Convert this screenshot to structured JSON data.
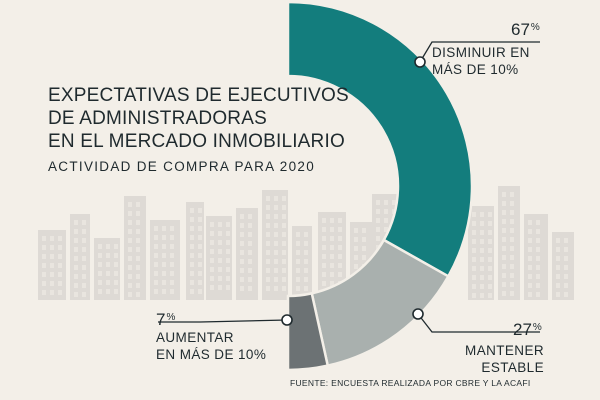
{
  "title_lines": [
    "EXPECTATIVAS DE EJECUTIVOS",
    "DE ADMINISTRADORAS",
    "EN EL MERCADO INMOBILIARIO"
  ],
  "subtitle": "ACTIVIDAD DE COMPRA PARA 2020",
  "source": "FUENTE: ENCUESTA REALIZADA POR CBRE Y LA ACAFI",
  "colors": {
    "background": "#f3efe8",
    "disminuir": "#137d7d",
    "mantener": "#a9b0ae",
    "aumentar": "#6c7274",
    "buildings": "#dedad5",
    "text": "#1f2a2e"
  },
  "chart_data": {
    "type": "pie",
    "style": "half-donut",
    "slices": [
      {
        "key": "disminuir",
        "value": 67,
        "pct_text": "67",
        "unit": "%",
        "label_lines": [
          "DISMINUIR EN",
          "MÁS DE 10%"
        ]
      },
      {
        "key": "mantener",
        "value": 27,
        "pct_text": "27",
        "unit": "%",
        "label_lines": [
          "MANTENER",
          "ESTABLE"
        ]
      },
      {
        "key": "aumentar",
        "value": 7,
        "pct_text": "7",
        "unit": "%",
        "label_lines": [
          "AUMENTAR",
          "EN MÁS DE 10%"
        ]
      }
    ]
  }
}
